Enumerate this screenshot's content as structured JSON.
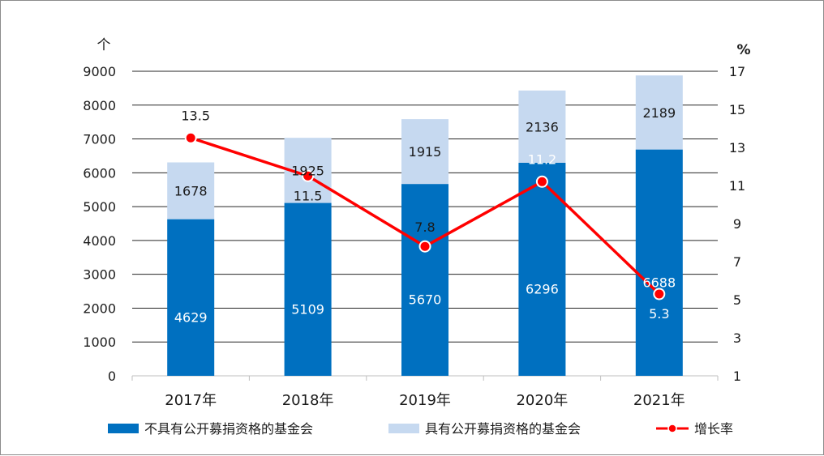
{
  "chart_data": {
    "type": "bar",
    "stacked": true,
    "categories": [
      "2017年",
      "2018年",
      "2019年",
      "2020年",
      "2021年"
    ],
    "series": [
      {
        "name": "不具有公开募捐资格的基金会",
        "values": [
          4629,
          5109,
          5670,
          6296,
          6688
        ],
        "color": "#0070C0",
        "label_color": "#ffffff"
      },
      {
        "name": "具有公开募捐资格的基金会",
        "values": [
          1678,
          1925,
          1915,
          2136,
          2189
        ],
        "color": "#C6D9F0",
        "label_color": "#1a1a1a"
      }
    ],
    "line_series": {
      "name": "增长率",
      "values": [
        13.5,
        11.5,
        7.8,
        11.2,
        5.3
      ],
      "color": "#FF0000",
      "axis": "right"
    },
    "left_axis": {
      "unit": "个",
      "range": [
        0,
        9000
      ],
      "ticks": [
        0,
        1000,
        2000,
        3000,
        4000,
        5000,
        6000,
        7000,
        8000,
        9000
      ]
    },
    "right_axis": {
      "unit": "%",
      "range": [
        1,
        17
      ],
      "ticks": [
        1,
        3,
        5,
        7,
        9,
        11,
        13,
        15,
        17
      ]
    },
    "grid": true,
    "legend_position": "bottom"
  }
}
